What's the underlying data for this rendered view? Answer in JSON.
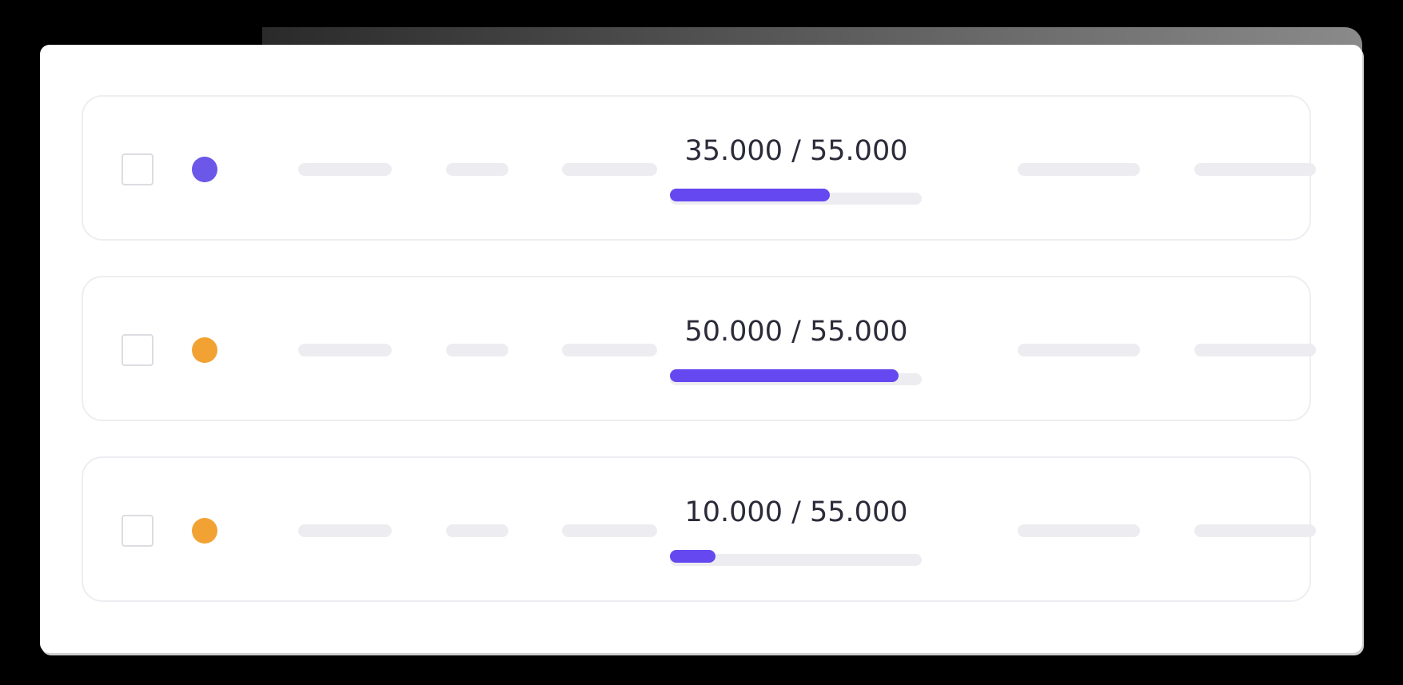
{
  "rows": [
    {
      "status_color": "#6b57e8",
      "progress": {
        "label": "35.000 / 55.000",
        "current": 35000,
        "total": 55000
      }
    },
    {
      "status_color": "#f2a233",
      "progress": {
        "label": "50.000 / 55.000",
        "current": 50000,
        "total": 55000
      }
    },
    {
      "status_color": "#f2a233",
      "progress": {
        "label": "10.000 / 55.000",
        "current": 10000,
        "total": 55000
      }
    }
  ],
  "progress_color": "#6548f0"
}
